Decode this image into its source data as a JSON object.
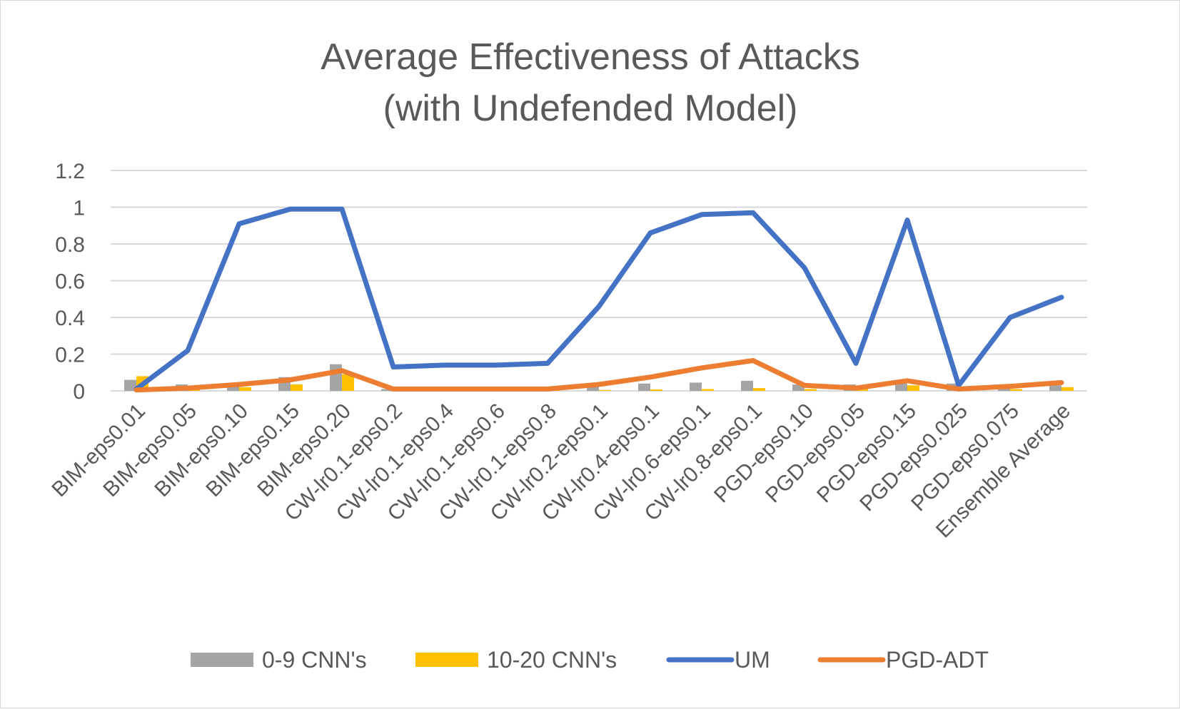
{
  "chart_data": {
    "type": "bar",
    "title": [
      "Average Effectiveness of Attacks",
      "(with Undefended Model)"
    ],
    "categories": [
      "BIM-eps0.01",
      "BIM-eps0.05",
      "BIM-eps0.10",
      "BIM-eps0.15",
      "BIM-eps0.20",
      "CW-lr0.1-eps0.2",
      "CW-lr0.1-eps0.4",
      "CW-lr0.1-eps0.6",
      "CW-lr0.1-eps0.8",
      "CW-lr0.2-eps0.1",
      "CW-lr0.4-eps0.1",
      "CW-lr0.6-eps0.1",
      "CW-lr0.8-eps0.1",
      "PGD-eps0.10",
      "PGD-eps0.05",
      "PGD-eps0.15",
      "PGD-eps0.025",
      "PGD-eps0.075",
      "Ensemble Average"
    ],
    "series": [
      {
        "name": "0-9 CNN's",
        "type": "bar",
        "color": "#a5a5a5",
        "values": [
          0.06,
          0.035,
          0.04,
          0.075,
          0.145,
          0.01,
          0.005,
          0.005,
          0.005,
          0.03,
          0.04,
          0.045,
          0.055,
          0.035,
          0.035,
          0.04,
          0.04,
          0.03,
          0.03
        ]
      },
      {
        "name": "10-20 CNN's",
        "type": "bar",
        "color": "#ffc000",
        "values": [
          0.08,
          0.01,
          0.02,
          0.035,
          0.09,
          0.005,
          0.002,
          0.002,
          0.002,
          0.005,
          0.008,
          0.01,
          0.015,
          0.01,
          0.01,
          0.03,
          0.005,
          0.01,
          0.02
        ]
      },
      {
        "name": "UM",
        "type": "line",
        "color": "#4472c4",
        "values": [
          0.01,
          0.22,
          0.91,
          0.99,
          0.99,
          0.13,
          0.14,
          0.14,
          0.15,
          0.46,
          0.86,
          0.96,
          0.97,
          0.67,
          0.15,
          0.93,
          0.03,
          0.4,
          0.51
        ]
      },
      {
        "name": "PGD-ADT",
        "type": "line",
        "color": "#ed7d31",
        "values": [
          0.005,
          0.015,
          0.035,
          0.06,
          0.11,
          0.01,
          0.01,
          0.01,
          0.01,
          0.035,
          0.075,
          0.125,
          0.165,
          0.03,
          0.015,
          0.055,
          0.01,
          0.025,
          0.045
        ]
      }
    ],
    "yticks": [
      "0",
      "0.2",
      "0.4",
      "0.6",
      "0.8",
      "1",
      "1.2"
    ],
    "ylim": [
      0,
      1.2
    ],
    "grid": true,
    "legend_position": "bottom"
  }
}
